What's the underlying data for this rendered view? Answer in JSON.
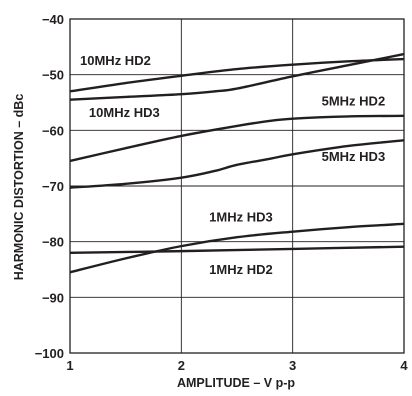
{
  "chart_data": {
    "type": "line",
    "title": "",
    "xlabel": "AMPLITUDE – V p-p",
    "ylabel": "HARMONIC DISTORTION – dBc",
    "xlim": [
      1,
      4
    ],
    "ylim": [
      -100,
      -40
    ],
    "xticks": [
      "1",
      "2",
      "3",
      "4"
    ],
    "yticks": [
      "−40",
      "−50",
      "−60",
      "−70",
      "−80",
      "−90",
      "−100"
    ],
    "grid": true,
    "legend": "none",
    "line_color": "#231f20",
    "series": [
      {
        "name": "10MHz HD2",
        "x": [
          1,
          1.5,
          2,
          2.5,
          3,
          3.5,
          4
        ],
        "y": [
          -53,
          -51.5,
          -50.2,
          -49,
          -48.2,
          -47.6,
          -47.2
        ]
      },
      {
        "name": "10MHz HD3",
        "x": [
          1,
          1.5,
          2,
          2.3,
          2.5,
          3,
          3.5,
          4
        ],
        "y": [
          -54.5,
          -54,
          -53.5,
          -53,
          -52.5,
          -50.3,
          -48.3,
          -46.3
        ]
      },
      {
        "name": "5MHz HD2",
        "x": [
          1,
          1.5,
          2,
          2.5,
          2.8,
          3,
          3.5,
          4
        ],
        "y": [
          -65.5,
          -63.2,
          -61,
          -59.2,
          -58.3,
          -57.9,
          -57.5,
          -57.4
        ]
      },
      {
        "name": "5MHz HD3",
        "x": [
          1,
          1.5,
          2,
          2.3,
          2.5,
          2.8,
          3,
          3.5,
          4
        ],
        "y": [
          -70.3,
          -69.6,
          -68.5,
          -67.3,
          -66.2,
          -65.1,
          -64.3,
          -62.8,
          -61.8
        ]
      },
      {
        "name": "1MHz HD3",
        "x": [
          1,
          1.5,
          2,
          2.5,
          3,
          3.5,
          4
        ],
        "y": [
          -85.5,
          -83,
          -80.8,
          -79.2,
          -78.2,
          -77.4,
          -76.8
        ]
      },
      {
        "name": "1MHz HD2",
        "x": [
          1,
          2,
          3,
          4
        ],
        "y": [
          -82,
          -81.7,
          -81.3,
          -80.9
        ]
      }
    ],
    "annotations": [
      {
        "series": "10MHz HD2",
        "text": "10MHz HD2",
        "x": 1.09,
        "y": -48.3
      },
      {
        "series": "10MHz HD3",
        "text": "10MHz HD3",
        "x": 1.17,
        "y": -57.6
      },
      {
        "series": "5MHz HD2",
        "text": "5MHz HD2",
        "x": 3.26,
        "y": -55.5
      },
      {
        "series": "5MHz HD3",
        "text": "5MHz HD3",
        "x": 3.26,
        "y": -65.5
      },
      {
        "series": "1MHz HD3",
        "text": "1MHz HD3",
        "x": 2.25,
        "y": -76.4
      },
      {
        "series": "1MHz HD2",
        "text": "1MHz HD2",
        "x": 2.25,
        "y": -85.8
      }
    ]
  }
}
